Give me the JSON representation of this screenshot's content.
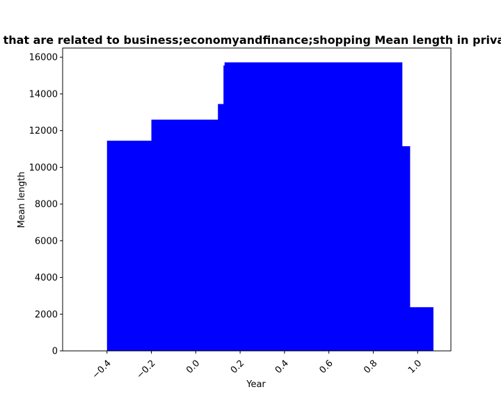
{
  "chart_data": {
    "type": "bar",
    "title": "Websites that are related to business;economyandfinance;shopping Mean length in privacy policies",
    "xlabel": "Year",
    "ylabel": "Mean length",
    "xlim": [
      -0.6,
      1.15
    ],
    "ylim": [
      0,
      16500
    ],
    "x_ticks": [
      -0.4,
      -0.2,
      0.0,
      0.2,
      0.4,
      0.6,
      0.8,
      1.0
    ],
    "x_tick_labels": [
      "−0.4",
      "−0.2",
      "0.0",
      "0.2",
      "0.4",
      "0.6",
      "0.8",
      "1.0"
    ],
    "y_ticks": [
      0,
      2000,
      4000,
      6000,
      8000,
      10000,
      12000,
      14000,
      16000
    ],
    "y_tick_labels": [
      "0",
      "2000",
      "4000",
      "6000",
      "8000",
      "10000",
      "12000",
      "14000",
      "16000"
    ],
    "bar_color": "#0000ff",
    "bars": [
      {
        "x_start": -0.4,
        "x_end": -0.2,
        "value": 11450
      },
      {
        "x_start": -0.2,
        "x_end": 0.1,
        "value": 12600
      },
      {
        "x_start": 0.1,
        "x_end": 0.125,
        "value": 13450
      },
      {
        "x_start": 0.125,
        "x_end": 0.13,
        "value": 15550
      },
      {
        "x_start": 0.13,
        "x_end": 0.93,
        "value": 15720
      },
      {
        "x_start": 0.93,
        "x_end": 0.965,
        "value": 11150
      },
      {
        "x_start": 0.965,
        "x_end": 1.07,
        "value": 2380
      }
    ]
  }
}
